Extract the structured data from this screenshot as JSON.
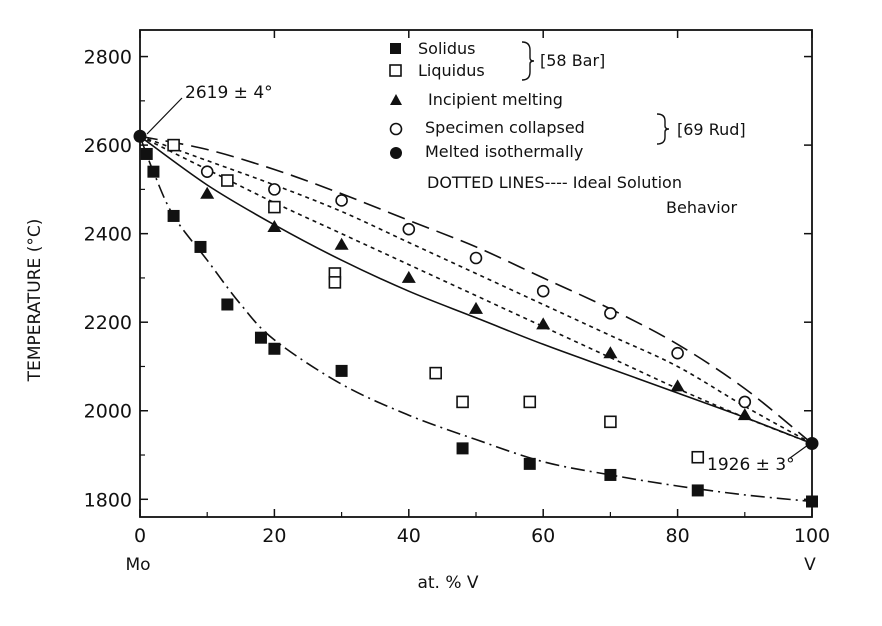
{
  "chart_data": {
    "type": "scatter",
    "xlabel": "at. % V",
    "ylabel": "TEMPERATURE (°C)",
    "xlim": [
      0,
      100
    ],
    "ylim": [
      1760,
      2860
    ],
    "x_ticks": [
      "0",
      "20",
      "40",
      "60",
      "80",
      "100"
    ],
    "y_ticks": [
      "1800",
      "2000",
      "2200",
      "2400",
      "2600",
      "2800"
    ],
    "x_end_labels": {
      "left": "Mo",
      "right": "V"
    },
    "legend": {
      "entries": [
        {
          "label": "Solidus",
          "marker": "filled-square"
        },
        {
          "label": "Liquidus",
          "marker": "open-square"
        },
        {
          "label": "Incipient melting",
          "marker": "filled-triangle"
        },
        {
          "label": "Specimen collapsed",
          "marker": "open-circle"
        },
        {
          "label": "Melted isothermally",
          "marker": "filled-circle"
        }
      ],
      "group_refs": [
        "[58 Bar]",
        "[69 Rud]"
      ],
      "note_line1": "DOTTED LINES---- Ideal Solution",
      "note_line2": "Behavior"
    },
    "annotations": {
      "mo_melting": "2619 ± 4°",
      "v_melting": "1926 ± 3°"
    },
    "series": [
      {
        "name": "Solidus",
        "marker": "filled-square",
        "points": [
          [
            1,
            2580
          ],
          [
            2,
            2540
          ],
          [
            5,
            2440
          ],
          [
            9,
            2370
          ],
          [
            13,
            2240
          ],
          [
            18,
            2165
          ],
          [
            20,
            2140
          ],
          [
            30,
            2090
          ],
          [
            48,
            1915
          ],
          [
            58,
            1880
          ],
          [
            70,
            1855
          ],
          [
            83,
            1820
          ],
          [
            100,
            1795
          ]
        ]
      },
      {
        "name": "Liquidus",
        "marker": "open-square",
        "points": [
          [
            5,
            2600
          ],
          [
            13,
            2520
          ],
          [
            20,
            2460
          ],
          [
            29,
            2310
          ],
          [
            29,
            2290
          ],
          [
            44,
            2085
          ],
          [
            48,
            2020
          ],
          [
            58,
            2020
          ],
          [
            70,
            1975
          ],
          [
            83,
            1895
          ]
        ]
      },
      {
        "name": "Incipient melting",
        "marker": "filled-triangle",
        "points": [
          [
            10,
            2490
          ],
          [
            20,
            2415
          ],
          [
            30,
            2375
          ],
          [
            40,
            2300
          ],
          [
            50,
            2230
          ],
          [
            60,
            2195
          ],
          [
            70,
            2130
          ],
          [
            80,
            2055
          ],
          [
            90,
            1990
          ]
        ]
      },
      {
        "name": "Specimen collapsed",
        "marker": "open-circle",
        "points": [
          [
            10,
            2540
          ],
          [
            20,
            2500
          ],
          [
            30,
            2475
          ],
          [
            40,
            2410
          ],
          [
            50,
            2345
          ],
          [
            60,
            2270
          ],
          [
            70,
            2220
          ],
          [
            80,
            2130
          ],
          [
            90,
            2020
          ]
        ]
      },
      {
        "name": "Melted isothermally",
        "marker": "filled-circle",
        "points": [
          [
            0,
            2620
          ],
          [
            100,
            1926
          ]
        ]
      }
    ],
    "curves": [
      {
        "name": "solid",
        "style": "solid",
        "points": [
          [
            0,
            2620
          ],
          [
            10,
            2510
          ],
          [
            20,
            2420
          ],
          [
            30,
            2340
          ],
          [
            40,
            2270
          ],
          [
            50,
            2210
          ],
          [
            60,
            2150
          ],
          [
            70,
            2095
          ],
          [
            80,
            2040
          ],
          [
            90,
            1985
          ],
          [
            100,
            1926
          ]
        ]
      },
      {
        "name": "dash-dot",
        "style": "dashdot",
        "points": [
          [
            0,
            2620
          ],
          [
            2,
            2540
          ],
          [
            5,
            2440
          ],
          [
            10,
            2340
          ],
          [
            15,
            2240
          ],
          [
            20,
            2160
          ],
          [
            30,
            2060
          ],
          [
            40,
            1990
          ],
          [
            50,
            1935
          ],
          [
            60,
            1885
          ],
          [
            70,
            1855
          ],
          [
            80,
            1830
          ],
          [
            90,
            1810
          ],
          [
            100,
            1795
          ]
        ]
      },
      {
        "name": "long-dash",
        "style": "longdash",
        "points": [
          [
            0,
            2620
          ],
          [
            10,
            2590
          ],
          [
            20,
            2545
          ],
          [
            30,
            2490
          ],
          [
            40,
            2430
          ],
          [
            50,
            2370
          ],
          [
            60,
            2300
          ],
          [
            70,
            2230
          ],
          [
            80,
            2150
          ],
          [
            90,
            2050
          ],
          [
            100,
            1926
          ]
        ]
      },
      {
        "name": "dotted-upper",
        "style": "dotted",
        "points": [
          [
            0,
            2620
          ],
          [
            10,
            2565
          ],
          [
            20,
            2510
          ],
          [
            30,
            2450
          ],
          [
            40,
            2380
          ],
          [
            50,
            2310
          ],
          [
            60,
            2240
          ],
          [
            70,
            2170
          ],
          [
            80,
            2100
          ],
          [
            90,
            2010
          ],
          [
            100,
            1926
          ]
        ]
      },
      {
        "name": "dotted-lower",
        "style": "dotted",
        "points": [
          [
            0,
            2620
          ],
          [
            10,
            2545
          ],
          [
            20,
            2470
          ],
          [
            30,
            2400
          ],
          [
            40,
            2330
          ],
          [
            50,
            2260
          ],
          [
            60,
            2190
          ],
          [
            70,
            2120
          ],
          [
            80,
            2050
          ],
          [
            90,
            1985
          ],
          [
            100,
            1926
          ]
        ]
      }
    ]
  }
}
